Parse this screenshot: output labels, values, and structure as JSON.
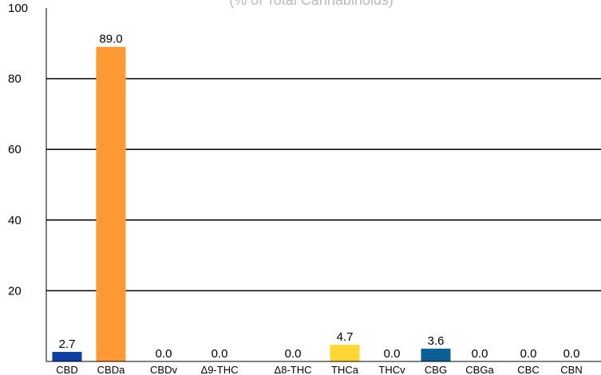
{
  "chart_data": {
    "type": "bar",
    "title": "(% of Total Cannabinoids)",
    "categories": [
      "CBD",
      "CBDa",
      "CBDv",
      "Δ9-THC",
      "Δ8-THC",
      "THCa",
      "THCv",
      "CBG",
      "CBGa",
      "CBC",
      "CBN"
    ],
    "values": [
      2.7,
      89.0,
      0.0,
      0.0,
      0.0,
      4.7,
      0.0,
      3.6,
      0.0,
      0.0,
      0.0
    ],
    "data_labels": [
      "2.7",
      "89.0",
      "0.0",
      "0.0",
      "0.0",
      "4.7",
      "0.0",
      "3.6",
      "0.0",
      "0.0",
      "0.0"
    ],
    "colors": [
      "#0d3fa6",
      "#ff9933",
      null,
      null,
      null,
      "#ffd633",
      null,
      "#0a5f96",
      null,
      null,
      null
    ],
    "ylim": [
      0,
      100
    ],
    "yticks": [
      "100",
      "80",
      "60",
      "40",
      "20"
    ],
    "grid": true,
    "legend": "none",
    "xlabel": "",
    "ylabel": ""
  }
}
